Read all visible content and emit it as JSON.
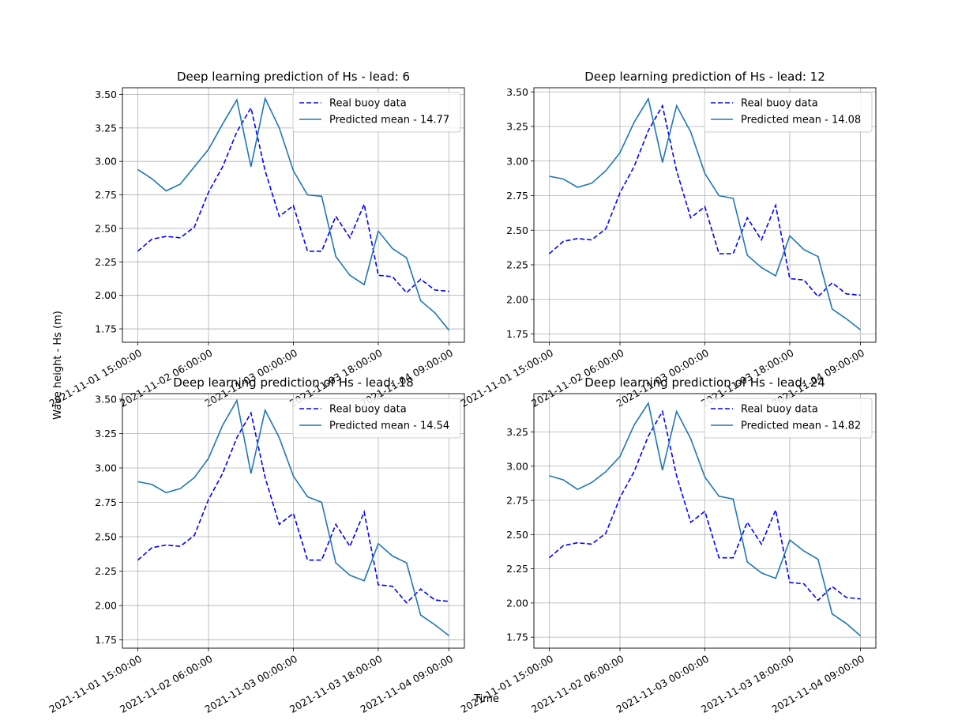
{
  "figure": {
    "xlabel": "Time",
    "ylabel": "Wave height - Hs (m)"
  },
  "chart_data": [
    {
      "type": "line",
      "title": "Deep learning prediction of Hs - lead: 6",
      "x": [
        "2021-11-01 15:00:00",
        "2021-11-01 18:00:00",
        "2021-11-01 21:00:00",
        "2021-11-02 00:00:00",
        "2021-11-02 03:00:00",
        "2021-11-02 06:00:00",
        "2021-11-02 09:00:00",
        "2021-11-02 12:00:00",
        "2021-11-02 15:00:00",
        "2021-11-02 18:00:00",
        "2021-11-02 21:00:00",
        "2021-11-03 00:00:00",
        "2021-11-03 03:00:00",
        "2021-11-03 06:00:00",
        "2021-11-03 09:00:00",
        "2021-11-03 12:00:00",
        "2021-11-03 15:00:00",
        "2021-11-03 18:00:00",
        "2021-11-03 21:00:00",
        "2021-11-04 00:00:00",
        "2021-11-04 03:00:00",
        "2021-11-04 06:00:00",
        "2021-11-04 09:00:00"
      ],
      "xticks": [
        "2021-11-01 15:00:00",
        "2021-11-02 06:00:00",
        "2021-11-03 00:00:00",
        "2021-11-03 18:00:00",
        "2021-11-04 09:00:00"
      ],
      "xtick_index": [
        0,
        5,
        11,
        17,
        22
      ],
      "yticks": [
        "1.75",
        "2.00",
        "2.25",
        "2.50",
        "2.75",
        "3.00",
        "3.25",
        "3.50"
      ],
      "ylim": [
        1.65,
        3.55
      ],
      "grid": true,
      "legend_position": "top-right",
      "series": [
        {
          "name": "Real buoy data",
          "style": "dashed",
          "color": "#0000ff",
          "values": [
            2.33,
            2.42,
            2.44,
            2.43,
            2.51,
            2.77,
            2.96,
            3.22,
            3.4,
            2.93,
            2.59,
            2.67,
            2.33,
            2.33,
            2.59,
            2.43,
            2.68,
            2.15,
            2.14,
            2.02,
            2.12,
            2.04,
            2.03
          ]
        },
        {
          "name": "Predicted mean - 14.77",
          "style": "solid",
          "color": "#1f77b4",
          "values": [
            2.94,
            2.87,
            2.78,
            2.83,
            2.96,
            3.09,
            3.28,
            3.46,
            2.96,
            3.47,
            3.25,
            2.93,
            2.75,
            2.74,
            2.29,
            2.15,
            2.08,
            2.48,
            2.35,
            2.28,
            1.96,
            1.87,
            1.74
          ]
        }
      ]
    },
    {
      "type": "line",
      "title": "Deep learning prediction of Hs - lead: 12",
      "x": [
        "2021-11-01 15:00:00",
        "2021-11-01 18:00:00",
        "2021-11-01 21:00:00",
        "2021-11-02 00:00:00",
        "2021-11-02 03:00:00",
        "2021-11-02 06:00:00",
        "2021-11-02 09:00:00",
        "2021-11-02 12:00:00",
        "2021-11-02 15:00:00",
        "2021-11-02 18:00:00",
        "2021-11-02 21:00:00",
        "2021-11-03 00:00:00",
        "2021-11-03 03:00:00",
        "2021-11-03 06:00:00",
        "2021-11-03 09:00:00",
        "2021-11-03 12:00:00",
        "2021-11-03 15:00:00",
        "2021-11-03 18:00:00",
        "2021-11-03 21:00:00",
        "2021-11-04 00:00:00",
        "2021-11-04 03:00:00",
        "2021-11-04 06:00:00",
        "2021-11-04 09:00:00"
      ],
      "xticks": [
        "2021-11-01 15:00:00",
        "2021-11-02 06:00:00",
        "2021-11-03 00:00:00",
        "2021-11-03 18:00:00",
        "2021-11-04 09:00:00"
      ],
      "xtick_index": [
        0,
        5,
        11,
        17,
        22
      ],
      "yticks": [
        "1.75",
        "2.00",
        "2.25",
        "2.50",
        "2.75",
        "3.00",
        "3.25",
        "3.50"
      ],
      "ylim": [
        1.69,
        3.53
      ],
      "grid": true,
      "legend_position": "top-right",
      "series": [
        {
          "name": "Real buoy data",
          "style": "dashed",
          "color": "#0000ff",
          "values": [
            2.33,
            2.42,
            2.44,
            2.43,
            2.51,
            2.77,
            2.96,
            3.22,
            3.4,
            2.93,
            2.59,
            2.67,
            2.33,
            2.33,
            2.59,
            2.43,
            2.68,
            2.15,
            2.14,
            2.02,
            2.12,
            2.04,
            2.03
          ]
        },
        {
          "name": "Predicted mean - 14.08",
          "style": "solid",
          "color": "#1f77b4",
          "values": [
            2.89,
            2.87,
            2.81,
            2.84,
            2.93,
            3.06,
            3.28,
            3.45,
            2.99,
            3.4,
            3.21,
            2.91,
            2.75,
            2.73,
            2.32,
            2.23,
            2.17,
            2.46,
            2.36,
            2.31,
            1.93,
            1.86,
            1.78
          ]
        }
      ]
    },
    {
      "type": "line",
      "title": "Deep learning prediction of Hs - lead: 18",
      "x": [
        "2021-11-01 15:00:00",
        "2021-11-01 18:00:00",
        "2021-11-01 21:00:00",
        "2021-11-02 00:00:00",
        "2021-11-02 03:00:00",
        "2021-11-02 06:00:00",
        "2021-11-02 09:00:00",
        "2021-11-02 12:00:00",
        "2021-11-02 15:00:00",
        "2021-11-02 18:00:00",
        "2021-11-02 21:00:00",
        "2021-11-03 00:00:00",
        "2021-11-03 03:00:00",
        "2021-11-03 06:00:00",
        "2021-11-03 09:00:00",
        "2021-11-03 12:00:00",
        "2021-11-03 15:00:00",
        "2021-11-03 18:00:00",
        "2021-11-03 21:00:00",
        "2021-11-04 00:00:00",
        "2021-11-04 03:00:00",
        "2021-11-04 06:00:00",
        "2021-11-04 09:00:00"
      ],
      "xticks": [
        "2021-11-01 15:00:00",
        "2021-11-02 06:00:00",
        "2021-11-03 00:00:00",
        "2021-11-03 18:00:00",
        "2021-11-04 09:00:00"
      ],
      "xtick_index": [
        0,
        5,
        11,
        17,
        22
      ],
      "yticks": [
        "1.75",
        "2.00",
        "2.25",
        "2.50",
        "2.75",
        "3.00",
        "3.25",
        "3.50"
      ],
      "ylim": [
        1.69,
        3.54
      ],
      "grid": true,
      "legend_position": "top-right",
      "series": [
        {
          "name": "Real buoy data",
          "style": "dashed",
          "color": "#0000ff",
          "values": [
            2.33,
            2.42,
            2.44,
            2.43,
            2.51,
            2.77,
            2.96,
            3.22,
            3.4,
            2.93,
            2.59,
            2.67,
            2.33,
            2.33,
            2.59,
            2.43,
            2.68,
            2.15,
            2.14,
            2.02,
            2.12,
            2.04,
            2.03
          ]
        },
        {
          "name": "Predicted mean - 14.54",
          "style": "solid",
          "color": "#1f77b4",
          "values": [
            2.9,
            2.88,
            2.82,
            2.85,
            2.93,
            3.07,
            3.31,
            3.49,
            2.96,
            3.42,
            3.22,
            2.94,
            2.79,
            2.75,
            2.31,
            2.22,
            2.18,
            2.45,
            2.36,
            2.31,
            1.93,
            1.86,
            1.78
          ]
        }
      ]
    },
    {
      "type": "line",
      "title": "Deep learning prediction of Hs - lead: 24",
      "x": [
        "2021-11-01 15:00:00",
        "2021-11-01 18:00:00",
        "2021-11-01 21:00:00",
        "2021-11-02 00:00:00",
        "2021-11-02 03:00:00",
        "2021-11-02 06:00:00",
        "2021-11-02 09:00:00",
        "2021-11-02 12:00:00",
        "2021-11-02 15:00:00",
        "2021-11-02 18:00:00",
        "2021-11-02 21:00:00",
        "2021-11-03 00:00:00",
        "2021-11-03 03:00:00",
        "2021-11-03 06:00:00",
        "2021-11-03 09:00:00",
        "2021-11-03 12:00:00",
        "2021-11-03 15:00:00",
        "2021-11-03 18:00:00",
        "2021-11-03 21:00:00",
        "2021-11-04 00:00:00",
        "2021-11-04 03:00:00",
        "2021-11-04 06:00:00",
        "2021-11-04 09:00:00"
      ],
      "xticks": [
        "2021-11-01 15:00:00",
        "2021-11-02 06:00:00",
        "2021-11-03 00:00:00",
        "2021-11-03 18:00:00",
        "2021-11-04 09:00:00"
      ],
      "xtick_index": [
        0,
        5,
        11,
        17,
        22
      ],
      "yticks": [
        "1.75",
        "2.00",
        "2.25",
        "2.50",
        "2.75",
        "3.00",
        "3.25"
      ],
      "ylim": [
        1.67,
        3.53
      ],
      "grid": true,
      "legend_position": "top-right",
      "series": [
        {
          "name": "Real buoy data",
          "style": "dashed",
          "color": "#0000ff",
          "values": [
            2.33,
            2.42,
            2.44,
            2.43,
            2.51,
            2.77,
            2.96,
            3.22,
            3.4,
            2.93,
            2.59,
            2.67,
            2.33,
            2.33,
            2.59,
            2.43,
            2.68,
            2.15,
            2.14,
            2.02,
            2.12,
            2.04,
            2.03
          ]
        },
        {
          "name": "Predicted mean - 14.82",
          "style": "solid",
          "color": "#1f77b4",
          "values": [
            2.93,
            2.9,
            2.83,
            2.88,
            2.96,
            3.07,
            3.3,
            3.46,
            2.97,
            3.4,
            3.2,
            2.92,
            2.78,
            2.76,
            2.3,
            2.22,
            2.18,
            2.46,
            2.38,
            2.32,
            1.92,
            1.85,
            1.76
          ]
        }
      ]
    }
  ]
}
